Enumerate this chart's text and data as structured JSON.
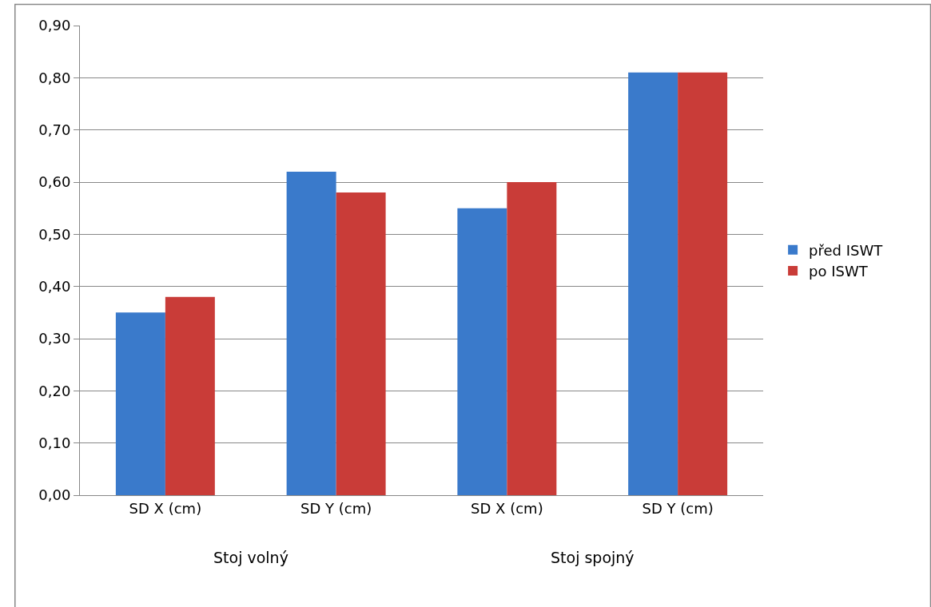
{
  "chart_data": {
    "type": "bar",
    "categories": [
      "SD X (cm)",
      "SD Y (cm)",
      "SD X (cm)",
      "SD Y (cm)"
    ],
    "series": [
      {
        "name": "před ISWT",
        "color": "#3a7acb",
        "values": [
          0.35,
          0.62,
          0.55,
          0.81
        ]
      },
      {
        "name": "po ISWT",
        "color": "#c93c38",
        "values": [
          0.38,
          0.58,
          0.6,
          0.81
        ]
      }
    ],
    "ylim": [
      0,
      0.9
    ],
    "yticks": [
      {
        "value": 0,
        "label": "0,00"
      },
      {
        "value": 0.1,
        "label": "0,10"
      },
      {
        "value": 0.2,
        "label": "0,20"
      },
      {
        "value": 0.3,
        "label": "0,30"
      },
      {
        "value": 0.4,
        "label": "0,40"
      },
      {
        "value": 0.5,
        "label": "0,50"
      },
      {
        "value": 0.6,
        "label": "0,60"
      },
      {
        "value": 0.7,
        "label": "0,70"
      },
      {
        "value": 0.8,
        "label": "0,80"
      },
      {
        "value": 0.9,
        "label": "0,90"
      }
    ],
    "annotations": [
      "Stoj volný",
      "Stoj spojný"
    ],
    "grid": "y",
    "legend": "right"
  }
}
